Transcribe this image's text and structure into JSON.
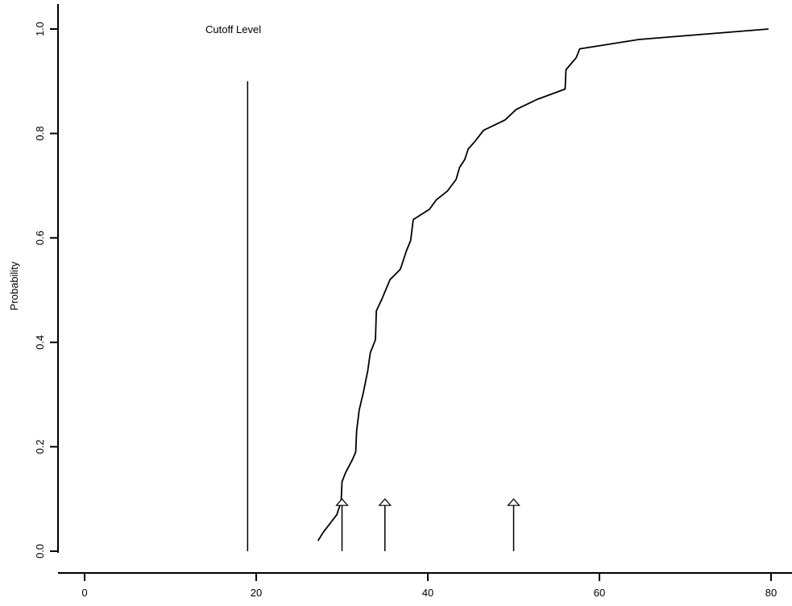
{
  "chart_data": {
    "type": "line",
    "title": "",
    "xlabel": "",
    "ylabel": "Probability",
    "xlim": [
      -2,
      81
    ],
    "ylim": [
      -0.01,
      1.05
    ],
    "x_ticks": [
      0,
      20,
      40,
      60,
      80
    ],
    "y_ticks": [
      0.0,
      0.2,
      0.4,
      0.6,
      0.8,
      1.0
    ],
    "x_tick_labels": [
      "0",
      "20",
      "40",
      "60",
      "80"
    ],
    "y_tick_labels": [
      "0.0",
      "0.2",
      "0.4",
      "0.6",
      "0.8",
      "1.0"
    ],
    "grid": false,
    "series": [
      {
        "values_xy": [
          [
            27.2,
            0.02
          ],
          [
            27.8,
            0.036
          ],
          [
            29.4,
            0.07
          ],
          [
            29.9,
            0.095
          ],
          [
            30.0,
            0.133
          ],
          [
            30.4,
            0.15
          ],
          [
            31.2,
            0.175
          ],
          [
            31.6,
            0.19
          ],
          [
            31.7,
            0.23
          ],
          [
            32.0,
            0.27
          ],
          [
            32.5,
            0.305
          ],
          [
            33.0,
            0.345
          ],
          [
            33.3,
            0.38
          ],
          [
            33.9,
            0.405
          ],
          [
            34.0,
            0.46
          ],
          [
            34.7,
            0.485
          ],
          [
            35.6,
            0.52
          ],
          [
            36.8,
            0.54
          ],
          [
            37.5,
            0.575
          ],
          [
            38.0,
            0.595
          ],
          [
            38.3,
            0.635
          ],
          [
            40.2,
            0.655
          ],
          [
            41.0,
            0.673
          ],
          [
            42.3,
            0.69
          ],
          [
            43.3,
            0.712
          ],
          [
            43.7,
            0.735
          ],
          [
            44.3,
            0.75
          ],
          [
            44.7,
            0.77
          ],
          [
            45.5,
            0.785
          ],
          [
            46.5,
            0.806
          ],
          [
            49.0,
            0.826
          ],
          [
            50.3,
            0.846
          ],
          [
            52.7,
            0.865
          ],
          [
            56.0,
            0.885
          ],
          [
            56.1,
            0.922
          ],
          [
            57.3,
            0.945
          ],
          [
            57.7,
            0.962
          ],
          [
            64.6,
            0.98
          ],
          [
            79.7,
            1.0
          ]
        ]
      }
    ],
    "cutoff": {
      "x": 19.0,
      "y_top": 0.9,
      "label": "Cutoff Level"
    },
    "arrows": [
      {
        "x": 30.0,
        "y_top": 0.1
      },
      {
        "x": 35.0,
        "y_top": 0.1
      },
      {
        "x": 50.0,
        "y_top": 0.1
      }
    ]
  }
}
